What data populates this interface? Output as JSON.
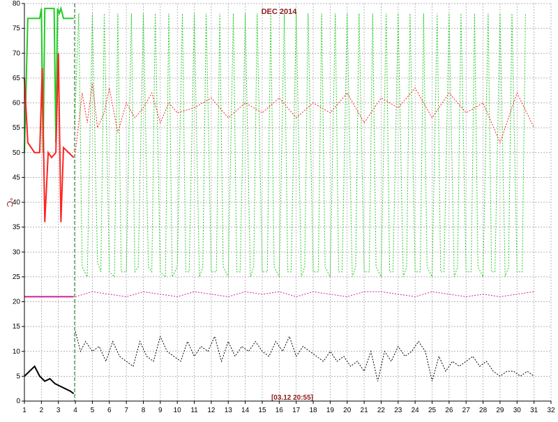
{
  "chart_data": {
    "type": "line",
    "title": "DEC 2014",
    "ylabel": "°C",
    "xlabel": "",
    "stamp": "[03.12 20:55]",
    "xlim": [
      1,
      32
    ],
    "ylim": [
      0,
      80
    ],
    "x_ticks": [
      "1",
      "2",
      "3",
      "4",
      "5",
      "6",
      "7",
      "8",
      "9",
      "10",
      "11",
      "12",
      "13",
      "14",
      "15",
      "16",
      "17",
      "18",
      "19",
      "20",
      "21",
      "22",
      "23",
      "24",
      "25",
      "26",
      "27",
      "28",
      "29",
      "30",
      "31",
      "32"
    ],
    "y_ticks": [
      "0",
      "5",
      "10",
      "15",
      "20",
      "25",
      "30",
      "35",
      "40",
      "45",
      "50",
      "55",
      "60",
      "65",
      "70",
      "75",
      "80"
    ],
    "grid": true,
    "cursor_x": 3.95,
    "series": [
      {
        "color": "#22cc22",
        "solid_x": [
          1.0,
          1.2,
          1.25,
          1.9,
          2.0,
          2.1,
          2.2,
          2.75,
          2.85,
          2.95,
          3.05,
          3.15,
          3.3,
          3.5,
          3.9
        ],
        "solid_y": [
          50,
          77,
          77,
          77,
          79,
          50,
          79,
          79,
          52,
          79,
          78,
          79,
          77,
          77,
          77
        ],
        "dotted_x": [
          3.95,
          4.2,
          4.4,
          4.7,
          5.0,
          5.3,
          5.5,
          5.7,
          6.0,
          6.3,
          6.5,
          6.7,
          7.0,
          7.3,
          7.5,
          7.7,
          8.0,
          8.3,
          8.5,
          8.7,
          9.0,
          9.3,
          9.5,
          9.7,
          10.0,
          10.3,
          10.5,
          10.7,
          11.0,
          11.3,
          11.5,
          11.7,
          12.0,
          12.3,
          12.5,
          12.7,
          13.0,
          13.3,
          13.5,
          13.7,
          14.0,
          14.3,
          14.5,
          14.7,
          15.0,
          15.3,
          15.5,
          15.7,
          16.0,
          16.3,
          16.5,
          16.7,
          17.0,
          17.3,
          17.5,
          17.7,
          18.0,
          18.3,
          18.5,
          18.7,
          19.0,
          19.3,
          19.5,
          19.7,
          20.0,
          20.3,
          20.5,
          20.7,
          21.0,
          21.3,
          21.5,
          21.7,
          22.0,
          22.3,
          22.5,
          22.7,
          23.0,
          23.3,
          23.5,
          23.7,
          24.0,
          24.3,
          24.5,
          24.7,
          25.0,
          25.3,
          25.5,
          25.7,
          26.0,
          26.3,
          26.5,
          26.7,
          27.0,
          27.3,
          27.5,
          27.7,
          28.0,
          28.3,
          28.5,
          28.7,
          29.0,
          29.3,
          29.5,
          29.7,
          30.0,
          30.3,
          30.5,
          30.7,
          31.0
        ],
        "dotted_y": [
          55,
          78,
          27,
          25,
          78,
          28,
          26,
          78,
          26,
          25,
          78,
          26,
          26,
          78,
          26,
          27,
          78,
          27,
          26,
          78,
          26,
          25,
          78,
          25,
          27,
          78,
          26,
          26,
          78,
          25,
          27,
          78,
          26,
          26,
          78,
          27,
          25,
          78,
          26,
          26,
          78,
          25,
          27,
          78,
          26,
          26,
          78,
          27,
          25,
          78,
          26,
          26,
          78,
          25,
          27,
          78,
          26,
          26,
          78,
          27,
          25,
          78,
          26,
          26,
          78,
          25,
          27,
          78,
          26,
          26,
          78,
          27,
          25,
          78,
          26,
          26,
          78,
          25,
          27,
          78,
          26,
          26,
          78,
          27,
          25,
          78,
          26,
          26,
          78,
          25,
          27,
          78,
          26,
          26,
          78,
          27,
          25,
          78,
          26,
          26,
          78,
          25,
          27,
          78,
          26,
          26,
          78
        ]
      },
      {
        "color": "#ff2222",
        "solid_x": [
          1.0,
          1.2,
          1.4,
          1.6,
          1.9,
          2.05,
          2.2,
          2.4,
          2.6,
          2.85,
          3.0,
          3.15,
          3.3,
          3.6,
          3.9
        ],
        "solid_y": [
          65,
          52,
          51,
          50,
          50,
          67,
          36,
          50,
          49,
          50,
          70,
          36,
          51,
          50,
          49
        ],
        "dotted_x": [
          4.0,
          4.4,
          4.7,
          5.0,
          5.3,
          5.7,
          6.0,
          6.5,
          7.0,
          7.5,
          8.0,
          8.5,
          9.0,
          9.5,
          10.0,
          11.0,
          12.0,
          13.0,
          14.0,
          15.0,
          16.0,
          17.0,
          18.0,
          19.0,
          20.0,
          21.0,
          22.0,
          23.0,
          24.0,
          25.0,
          26.0,
          27.0,
          28.0,
          29.0,
          30.0,
          31.0
        ],
        "dotted_y": [
          50,
          62,
          56,
          64,
          55,
          58,
          63,
          54,
          60,
          57,
          59,
          62,
          56,
          60,
          58,
          59,
          61,
          57,
          60,
          58,
          61,
          57,
          60,
          58,
          62,
          56,
          61,
          59,
          63,
          57,
          62,
          58,
          60,
          52,
          62,
          55
        ]
      },
      {
        "color": "#cc2299",
        "solid_x": [
          1.0,
          1.4,
          2.0,
          2.5,
          3.0,
          3.4,
          3.9
        ],
        "solid_y": [
          21,
          21,
          21,
          21,
          21,
          21,
          21
        ],
        "dotted_x": [
          4.0,
          5.0,
          6.0,
          7.0,
          8.0,
          9.0,
          10.0,
          11.0,
          12.0,
          13.0,
          14.0,
          15.0,
          16.0,
          17.0,
          18.0,
          19.0,
          20.0,
          21.0,
          22.0,
          23.0,
          24.0,
          25.0,
          26.0,
          27.0,
          28.0,
          29.0,
          30.0,
          31.0
        ],
        "dotted_y": [
          21,
          22,
          21.5,
          21,
          22,
          21.5,
          21,
          22,
          21.5,
          21,
          22,
          21.5,
          22,
          21,
          22,
          21.5,
          21,
          22,
          22,
          21.5,
          21,
          22,
          21.5,
          21,
          21.5,
          21,
          21.5,
          22
        ]
      },
      {
        "color": "#000000",
        "solid_x": [
          1.0,
          1.3,
          1.6,
          1.9,
          2.2,
          2.5,
          2.8,
          3.1,
          3.4,
          3.7,
          3.9
        ],
        "solid_y": [
          5,
          6,
          7,
          5,
          4,
          4.5,
          3.5,
          3,
          2.5,
          2,
          1.5
        ],
        "dotted_x": [
          4.0,
          4.3,
          4.6,
          5.0,
          5.4,
          5.8,
          6.2,
          6.6,
          7.0,
          7.4,
          7.8,
          8.2,
          8.6,
          9.0,
          9.4,
          9.8,
          10.2,
          10.6,
          11.0,
          11.4,
          11.8,
          12.2,
          12.6,
          13.0,
          13.4,
          13.8,
          14.2,
          14.6,
          15.0,
          15.4,
          15.8,
          16.2,
          16.6,
          17.0,
          17.4,
          17.8,
          18.2,
          18.6,
          19.0,
          19.4,
          19.8,
          20.2,
          20.6,
          21.0,
          21.4,
          21.8,
          22.2,
          22.6,
          23.0,
          23.4,
          23.8,
          24.2,
          24.6,
          25.0,
          25.4,
          25.8,
          26.2,
          26.6,
          27.0,
          27.4,
          27.8,
          28.2,
          28.6,
          29.0,
          29.4,
          29.8,
          30.2,
          30.6,
          31.0
        ],
        "dotted_y": [
          14,
          10,
          12,
          10,
          11,
          8,
          12,
          9,
          8,
          7,
          12,
          9,
          8,
          13,
          10,
          9,
          8,
          12,
          9,
          11,
          10,
          13,
          8,
          12,
          9,
          11,
          10,
          12,
          10,
          9,
          12,
          10,
          13,
          9,
          11,
          10,
          9,
          8,
          10,
          8,
          9,
          7,
          8,
          6,
          10,
          4,
          10,
          8,
          11,
          9,
          10,
          12,
          10,
          4,
          9,
          6,
          8,
          7,
          8,
          9,
          7,
          8,
          6,
          5,
          6,
          6,
          5,
          6,
          5
        ]
      }
    ]
  }
}
